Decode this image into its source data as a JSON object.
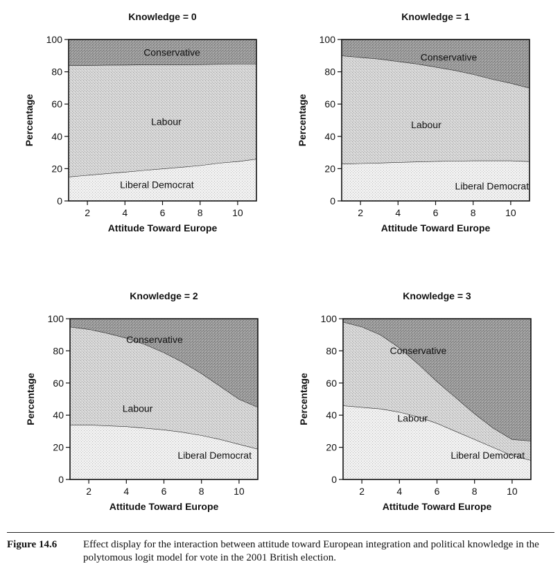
{
  "chart_data": [
    {
      "type": "area",
      "stacked": true,
      "title": "Knowledge = 0",
      "xlabel": "Attitude Toward Europe",
      "ylabel": "Percentage",
      "xlim": [
        1,
        11
      ],
      "ylim": [
        0,
        100
      ],
      "xticks": [
        2,
        4,
        6,
        8,
        10
      ],
      "yticks": [
        0,
        20,
        40,
        60,
        80,
        100
      ],
      "x": [
        1,
        2,
        3,
        4,
        5,
        6,
        7,
        8,
        9,
        10,
        11
      ],
      "series": [
        {
          "name": "Liberal Democrat",
          "values": [
            15,
            16,
            17,
            18,
            19,
            20,
            21,
            22,
            23.5,
            24.5,
            26
          ]
        },
        {
          "name": "Labour",
          "values": [
            69,
            68,
            67.2,
            66.3,
            65.4,
            64.5,
            63.5,
            62.6,
            61.3,
            60.4,
            59
          ]
        },
        {
          "name": "Conservative",
          "values": [
            16,
            16,
            15.8,
            15.7,
            15.6,
            15.5,
            15.5,
            15.4,
            15.2,
            15.1,
            15
          ]
        }
      ]
    },
    {
      "type": "area",
      "stacked": true,
      "title": "Knowledge = 1",
      "xlabel": "Attitude Toward Europe",
      "ylabel": "Percentage",
      "xlim": [
        1,
        11
      ],
      "ylim": [
        0,
        100
      ],
      "xticks": [
        2,
        4,
        6,
        8,
        10
      ],
      "yticks": [
        0,
        20,
        40,
        60,
        80,
        100
      ],
      "x": [
        1,
        2,
        3,
        4,
        5,
        6,
        7,
        8,
        9,
        10,
        11
      ],
      "series": [
        {
          "name": "Liberal Democrat",
          "values": [
            23,
            23.3,
            23.6,
            24,
            24.3,
            24.6,
            24.8,
            25,
            25,
            25,
            24.5
          ]
        },
        {
          "name": "Labour",
          "values": [
            67,
            65.7,
            64.4,
            62.5,
            60.7,
            58.4,
            56.2,
            53.5,
            50.5,
            48,
            45.5
          ]
        },
        {
          "name": "Conservative",
          "values": [
            10,
            11,
            12,
            13.5,
            15,
            17,
            19,
            21.5,
            24.5,
            27,
            30
          ]
        }
      ]
    },
    {
      "type": "area",
      "stacked": true,
      "title": "Knowledge = 2",
      "xlabel": "Attitude Toward Europe",
      "ylabel": "Percentage",
      "xlim": [
        1,
        11
      ],
      "ylim": [
        0,
        100
      ],
      "xticks": [
        2,
        4,
        6,
        8,
        10
      ],
      "yticks": [
        0,
        20,
        40,
        60,
        80,
        100
      ],
      "x": [
        1,
        2,
        3,
        4,
        5,
        6,
        7,
        8,
        9,
        10,
        11
      ],
      "series": [
        {
          "name": "Liberal Democrat",
          "values": [
            34,
            34,
            33.5,
            33,
            32,
            31,
            29.5,
            27.5,
            25,
            22,
            19
          ]
        },
        {
          "name": "Labour",
          "values": [
            61,
            59.5,
            57.5,
            55,
            52,
            48,
            43.5,
            38.5,
            33,
            28,
            26
          ]
        },
        {
          "name": "Conservative",
          "values": [
            5,
            6.5,
            9,
            12,
            16,
            21,
            27,
            34,
            42,
            50,
            55
          ]
        }
      ]
    },
    {
      "type": "area",
      "stacked": true,
      "title": "Knowledge = 3",
      "xlabel": "Attitude Toward Europe",
      "ylabel": "Percentage",
      "xlim": [
        1,
        11
      ],
      "ylim": [
        0,
        100
      ],
      "xticks": [
        2,
        4,
        6,
        8,
        10
      ],
      "yticks": [
        0,
        20,
        40,
        60,
        80,
        100
      ],
      "x": [
        1,
        2,
        3,
        4,
        5,
        6,
        7,
        8,
        9,
        10,
        11
      ],
      "series": [
        {
          "name": "Liberal Democrat",
          "values": [
            46,
            45,
            44,
            42,
            39,
            35,
            30,
            25,
            20,
            15,
            12
          ]
        },
        {
          "name": "Labour",
          "values": [
            52,
            50,
            46,
            40,
            33,
            26,
            21,
            16,
            12,
            10,
            12
          ]
        },
        {
          "name": "Conservative",
          "values": [
            2,
            5,
            10,
            18,
            28,
            39,
            49,
            59,
            68,
            75,
            76
          ]
        }
      ]
    }
  ],
  "caption": {
    "label": "Figure 14.6",
    "text": "Effect display for the interaction between attitude toward European integration and political knowledge in the polytomous logit model for vote in the 2001 British election."
  }
}
